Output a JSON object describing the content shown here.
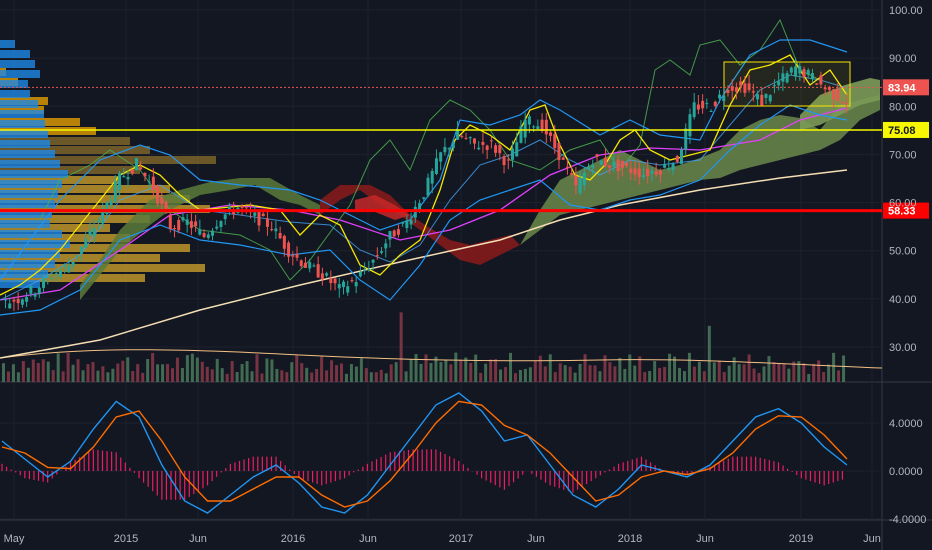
{
  "chart_data": [
    {
      "type": "line",
      "panel": "price",
      "y_axis_ticks": [
        30,
        40,
        50,
        60,
        70,
        80,
        90,
        100
      ],
      "y_axis_tick_labels": [
        "30.00",
        "40.00",
        "50.00",
        "60.00",
        "70.00",
        "80.00",
        "90.00",
        "100.00"
      ],
      "ylim": [
        22,
        103
      ],
      "x_axis_labels": [
        "May",
        "2015",
        "Jun",
        "2016",
        "Jun",
        "2017",
        "Jun",
        "2018",
        "Jun",
        "2019",
        "Jun"
      ],
      "price_markers": [
        {
          "label": "83.94",
          "value": 83.94,
          "color": "#ef5350"
        },
        {
          "label": "75.08",
          "value": 75.08,
          "color": "#f7f700"
        },
        {
          "label": "58.33",
          "value": 58.33,
          "color": "#ff0000"
        }
      ],
      "horizontal_lines": [
        {
          "value": 83.94,
          "color": "#ef5350",
          "style": "dotted"
        },
        {
          "value": 75.08,
          "color": "#f7f700",
          "style": "solid"
        },
        {
          "value": 58.33,
          "color": "#ff0000",
          "style": "solid-thick"
        }
      ],
      "close_series": [
        40,
        42,
        45,
        47,
        52,
        58,
        65,
        68,
        63,
        55,
        56,
        53,
        57,
        59,
        57,
        55,
        50,
        47,
        45,
        42,
        44,
        48,
        53,
        56,
        62,
        70,
        74,
        72,
        72,
        68,
        77,
        76,
        70,
        63,
        69,
        68,
        67,
        66,
        67,
        69,
        80,
        80,
        84,
        84,
        81,
        85,
        88,
        86,
        83,
        81
      ],
      "volume_bar_count": 170,
      "grid": true,
      "legend": "none"
    },
    {
      "type": "line",
      "panel": "macd",
      "y_axis_ticks": [
        -4,
        0,
        4
      ],
      "y_axis_tick_labels": [
        "-4.0000",
        "0.0000",
        "4.0000"
      ],
      "ylim": [
        -4.1,
        7
      ],
      "series": [
        {
          "values": [
            2.5,
            1.0,
            -0.5,
            0.8,
            3.5,
            5.8,
            4.5,
            0.5,
            -2.5,
            -3.5,
            -2.0,
            -0.5,
            0.5,
            -1.0,
            -3.0,
            -3.5,
            -2.0,
            0.5,
            3.0,
            5.5,
            6.5,
            5.0,
            2.5,
            3.0,
            0.5,
            -2.0,
            -3.0,
            -1.5,
            0.5,
            0.0,
            -0.5,
            0.5,
            2.5,
            4.5,
            5.2,
            4.0,
            2.0,
            0.5
          ],
          "color": "#2196f3"
        },
        {
          "values": [
            2.0,
            1.5,
            0.3,
            0.2,
            2.0,
            4.5,
            5.0,
            2.5,
            -0.5,
            -2.5,
            -2.5,
            -1.5,
            -0.5,
            -0.5,
            -2.0,
            -3.0,
            -2.5,
            -0.8,
            1.5,
            4.0,
            5.8,
            5.5,
            3.8,
            3.0,
            1.5,
            -0.5,
            -2.5,
            -2.0,
            -0.5,
            0.0,
            -0.3,
            0.2,
            1.5,
            3.5,
            4.6,
            4.5,
            3.0,
            1.0
          ],
          "color": "#ff6d00"
        }
      ],
      "histogram_color": "#e91e63",
      "grid": true
    }
  ]
}
